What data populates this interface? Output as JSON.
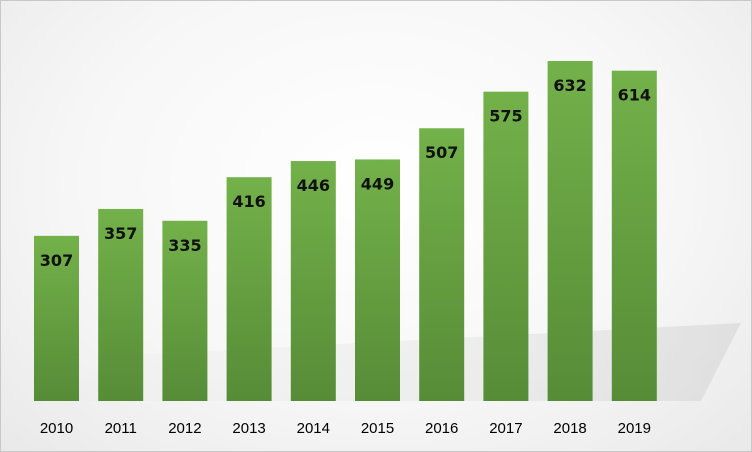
{
  "chart_data": {
    "type": "bar",
    "categories": [
      "2010",
      "2011",
      "2012",
      "2013",
      "2014",
      "2015",
      "2016",
      "2017",
      "2018",
      "2019"
    ],
    "values": [
      307,
      357,
      335,
      416,
      446,
      449,
      507,
      575,
      632,
      614
    ],
    "title": "",
    "xlabel": "",
    "ylabel": "",
    "ylim": [
      0,
      680
    ],
    "grid": false,
    "legend": "none",
    "colors": {
      "bar_top": "#71ae48",
      "bar_bottom": "#5a8f3a",
      "label": "#111111"
    }
  }
}
